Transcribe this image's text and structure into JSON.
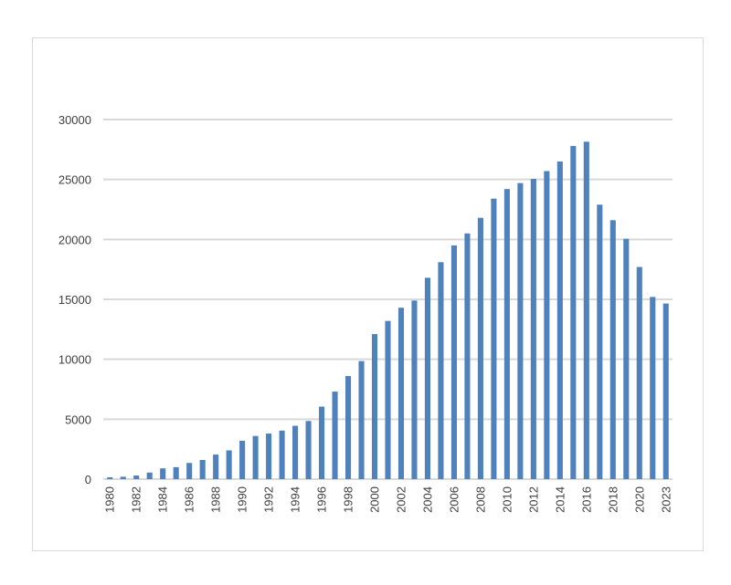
{
  "chart_data": {
    "type": "bar",
    "title": "",
    "xlabel": "",
    "ylabel": "",
    "ylim": [
      0,
      30000
    ],
    "yticks": [
      0,
      5000,
      10000,
      15000,
      20000,
      25000,
      30000
    ],
    "grid": true,
    "legend": "none",
    "bar_color": "#4f81bd",
    "grid_color": "#d9d9d9",
    "x_tick_labels": [
      "1980",
      "1982",
      "1984",
      "1986",
      "1988",
      "1990",
      "1992",
      "1994",
      "1996",
      "1998",
      "2000",
      "2002",
      "2004",
      "2006",
      "2008",
      "2010",
      "2012",
      "2014",
      "2016",
      "2018",
      "2020",
      "2023"
    ],
    "categories": [
      "1980",
      "1981",
      "1982",
      "1983",
      "1984",
      "1985",
      "1986",
      "1987",
      "1988",
      "1989",
      "1990",
      "1991",
      "1992",
      "1993",
      "1994",
      "1995",
      "1996",
      "1997",
      "1998",
      "1999",
      "2000",
      "2001",
      "2002",
      "2003",
      "2004",
      "2005",
      "2006",
      "2007",
      "2008",
      "2009",
      "2010",
      "2011",
      "2012",
      "2013",
      "2014",
      "2015",
      "2016",
      "2017",
      "2018",
      "2019",
      "2020",
      "2021",
      "2023"
    ],
    "values": [
      150,
      200,
      300,
      550,
      900,
      1000,
      1350,
      1600,
      2050,
      2400,
      3200,
      3600,
      3800,
      4050,
      4450,
      4850,
      6050,
      7300,
      8600,
      9850,
      12100,
      13200,
      14300,
      14900,
      16800,
      18100,
      19500,
      20500,
      21800,
      23400,
      24200,
      24700,
      25050,
      25700,
      26500,
      27800,
      28150,
      22900,
      21600,
      20050,
      17700,
      15200,
      14650
    ]
  }
}
